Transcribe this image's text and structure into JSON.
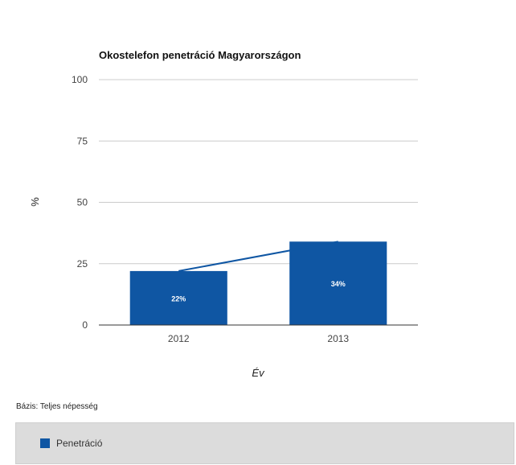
{
  "chart_data": {
    "type": "bar",
    "title": "Okostelefon penetráció Magyarországon",
    "xlabel": "Év",
    "ylabel": "%",
    "categories": [
      "2012",
      "2013"
    ],
    "series": [
      {
        "name": "Penetráció",
        "values": [
          22,
          34
        ],
        "data_labels": [
          "22%",
          "34%"
        ],
        "color": "#0f56a3"
      }
    ],
    "trend_line": {
      "values": [
        22,
        34
      ],
      "color": "#0f56a3"
    },
    "ylim": [
      0,
      100
    ],
    "yticks": [
      "0",
      "25",
      "50",
      "75",
      "100"
    ],
    "grid": true,
    "legend_position": "bottom"
  },
  "footer": {
    "base_note": "Bázis: Teljes népesség"
  },
  "legend": {
    "items": [
      {
        "label": "Penetráció",
        "color": "#0f56a3"
      }
    ]
  }
}
